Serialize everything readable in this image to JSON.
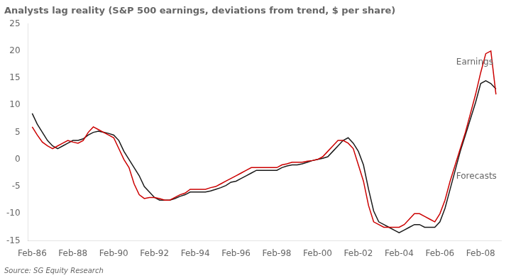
{
  "chart_data": {
    "type": "line",
    "title": "Analysts lag reality (S&P 500 earnings, deviations from trend, $ per share)",
    "source": "Source: SG Equity Research",
    "x": [
      1986.0,
      1986.25,
      1986.5,
      1986.75,
      1987.0,
      1987.25,
      1987.5,
      1987.75,
      1988.0,
      1988.25,
      1988.5,
      1988.75,
      1989.0,
      1989.25,
      1989.5,
      1989.75,
      1990.0,
      1990.25,
      1990.5,
      1990.75,
      1991.0,
      1991.25,
      1991.5,
      1991.75,
      1992.0,
      1992.25,
      1992.5,
      1992.75,
      1993.0,
      1993.25,
      1993.5,
      1993.75,
      1994.0,
      1994.25,
      1994.5,
      1994.75,
      1995.0,
      1995.25,
      1995.5,
      1995.75,
      1996.0,
      1996.25,
      1996.5,
      1996.75,
      1997.0,
      1997.25,
      1997.5,
      1997.75,
      1998.0,
      1998.25,
      1998.5,
      1998.75,
      1999.0,
      1999.25,
      1999.5,
      1999.75,
      2000.0,
      2000.25,
      2000.5,
      2000.75,
      2001.0,
      2001.25,
      2001.5,
      2001.75,
      2002.0,
      2002.25,
      2002.5,
      2002.75,
      2003.0,
      2003.25,
      2003.5,
      2003.75,
      2004.0,
      2004.25,
      2004.5,
      2004.75,
      2005.0,
      2005.25,
      2005.5,
      2005.75,
      2006.0,
      2006.25,
      2006.5,
      2006.75,
      2007.0,
      2007.25,
      2007.5,
      2007.75,
      2008.0,
      2008.25,
      2008.5,
      2008.75
    ],
    "series": [
      {
        "name": "Earnings",
        "color": "#cc0000",
        "values": [
          6.0,
          4.5,
          3.2,
          2.5,
          2.0,
          2.5,
          3.0,
          3.5,
          3.2,
          3.0,
          3.5,
          5.0,
          6.0,
          5.5,
          5.0,
          4.5,
          4.0,
          2.0,
          0.0,
          -1.5,
          -4.5,
          -6.5,
          -7.2,
          -7.0,
          -7.0,
          -7.2,
          -7.5,
          -7.5,
          -7.0,
          -6.5,
          -6.2,
          -5.5,
          -5.5,
          -5.5,
          -5.5,
          -5.2,
          -5.0,
          -4.5,
          -4.0,
          -3.5,
          -3.0,
          -2.5,
          -2.0,
          -1.5,
          -1.5,
          -1.5,
          -1.5,
          -1.5,
          -1.5,
          -1.0,
          -0.8,
          -0.5,
          -0.5,
          -0.5,
          -0.3,
          -0.2,
          0.0,
          0.5,
          1.5,
          2.5,
          3.5,
          3.5,
          3.0,
          2.0,
          -1.0,
          -4.0,
          -8.5,
          -11.5,
          -12.0,
          -12.5,
          -12.5,
          -12.5,
          -12.5,
          -12.0,
          -11.0,
          -10.0,
          -10.0,
          -10.5,
          -11.0,
          -11.5,
          -10.0,
          -7.5,
          -4.0,
          -1.0,
          2.0,
          5.0,
          8.5,
          12.0,
          16.0,
          19.5,
          20.0,
          12.0
        ]
      },
      {
        "name": "Forecasts",
        "color": "#1a1a1a",
        "values": [
          8.5,
          6.5,
          5.0,
          3.5,
          2.5,
          2.0,
          2.5,
          3.0,
          3.5,
          3.5,
          3.8,
          4.5,
          5.0,
          5.2,
          5.0,
          4.8,
          4.5,
          3.5,
          1.5,
          0.0,
          -1.5,
          -3.0,
          -5.0,
          -6.0,
          -7.0,
          -7.5,
          -7.5,
          -7.5,
          -7.2,
          -6.8,
          -6.5,
          -6.0,
          -6.0,
          -6.0,
          -6.0,
          -5.8,
          -5.5,
          -5.2,
          -4.8,
          -4.2,
          -4.0,
          -3.5,
          -3.0,
          -2.5,
          -2.0,
          -2.0,
          -2.0,
          -2.0,
          -2.0,
          -1.5,
          -1.2,
          -1.0,
          -1.0,
          -0.8,
          -0.5,
          -0.2,
          0.0,
          0.2,
          0.5,
          1.5,
          2.5,
          3.5,
          4.0,
          3.0,
          1.5,
          -1.0,
          -5.5,
          -9.5,
          -11.5,
          -12.0,
          -12.5,
          -13.0,
          -13.5,
          -13.0,
          -12.5,
          -12.0,
          -12.0,
          -12.5,
          -12.5,
          -12.5,
          -11.5,
          -9.0,
          -5.5,
          -2.0,
          1.5,
          4.5,
          7.5,
          10.5,
          14.0,
          14.5,
          14.0,
          13.0
        ]
      }
    ],
    "xlim": [
      1985.8,
      2009.0
    ],
    "xticks": [
      {
        "value": 1986,
        "label": "Feb-86"
      },
      {
        "value": 1988,
        "label": "Feb-88"
      },
      {
        "value": 1990,
        "label": "Feb-90"
      },
      {
        "value": 1992,
        "label": "Feb-92"
      },
      {
        "value": 1994,
        "label": "Feb-94"
      },
      {
        "value": 1996,
        "label": "Feb-96"
      },
      {
        "value": 1998,
        "label": "Feb-98"
      },
      {
        "value": 2000,
        "label": "Feb-00"
      },
      {
        "value": 2002,
        "label": "Feb-02"
      },
      {
        "value": 2004,
        "label": "Feb-04"
      },
      {
        "value": 2006,
        "label": "Feb-06"
      },
      {
        "value": 2008,
        "label": "Feb-08"
      }
    ],
    "ylim": [
      -15,
      25
    ],
    "yticks": [
      -15,
      -10,
      -5,
      0,
      5,
      10,
      15,
      20,
      25
    ],
    "grid": false,
    "annotations": [
      {
        "text": "Earnings",
        "x": 2006.8,
        "y": 17.5
      },
      {
        "text": "Forecasts",
        "x": 2006.8,
        "y": -3.5
      }
    ]
  }
}
